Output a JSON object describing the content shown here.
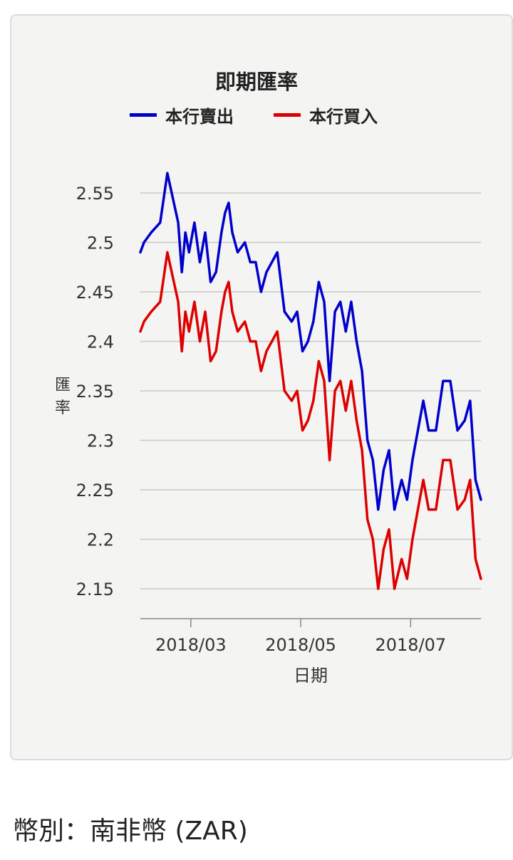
{
  "chart_data": {
    "type": "line",
    "title": "即期匯率",
    "xlabel": "日期",
    "ylabel": "匯率",
    "ylim": [
      2.12,
      2.58
    ],
    "x_ticks": [
      "2018/03",
      "2018/05",
      "2018/07"
    ],
    "y_ticks": [
      2.15,
      2.2,
      2.25,
      2.3,
      2.35,
      2.4,
      2.45,
      2.5,
      2.55
    ],
    "legend_position": "top-center",
    "grid": true,
    "series": [
      {
        "name": "本行賣出",
        "color": "#0000cc",
        "x": [
          "2018-02-01",
          "2018-02-03",
          "2018-02-07",
          "2018-02-12",
          "2018-02-16",
          "2018-02-22",
          "2018-02-24",
          "2018-02-26",
          "2018-02-28",
          "2018-03-03",
          "2018-03-06",
          "2018-03-09",
          "2018-03-12",
          "2018-03-15",
          "2018-03-18",
          "2018-03-20",
          "2018-03-22",
          "2018-03-24",
          "2018-03-27",
          "2018-03-31",
          "2018-04-03",
          "2018-04-06",
          "2018-04-09",
          "2018-04-12",
          "2018-04-15",
          "2018-04-18",
          "2018-04-22",
          "2018-04-26",
          "2018-04-29",
          "2018-05-02",
          "2018-05-05",
          "2018-05-08",
          "2018-05-11",
          "2018-05-14",
          "2018-05-17",
          "2018-05-20",
          "2018-05-23",
          "2018-05-26",
          "2018-05-29",
          "2018-06-01",
          "2018-06-04",
          "2018-06-07",
          "2018-06-10",
          "2018-06-13",
          "2018-06-16",
          "2018-06-19",
          "2018-06-22",
          "2018-06-26",
          "2018-06-29",
          "2018-07-02",
          "2018-07-05",
          "2018-07-08",
          "2018-07-11",
          "2018-07-15",
          "2018-07-19",
          "2018-07-23",
          "2018-07-27",
          "2018-07-31",
          "2018-08-03",
          "2018-08-06",
          "2018-08-09"
        ],
        "values": [
          2.49,
          2.5,
          2.51,
          2.52,
          2.57,
          2.52,
          2.47,
          2.51,
          2.49,
          2.52,
          2.48,
          2.51,
          2.46,
          2.47,
          2.51,
          2.53,
          2.54,
          2.51,
          2.49,
          2.5,
          2.48,
          2.48,
          2.45,
          2.47,
          2.48,
          2.49,
          2.43,
          2.42,
          2.43,
          2.39,
          2.4,
          2.42,
          2.46,
          2.44,
          2.36,
          2.43,
          2.44,
          2.41,
          2.44,
          2.4,
          2.37,
          2.3,
          2.28,
          2.23,
          2.27,
          2.29,
          2.23,
          2.26,
          2.24,
          2.28,
          2.31,
          2.34,
          2.31,
          2.31,
          2.36,
          2.36,
          2.31,
          2.32,
          2.34,
          2.26,
          2.24
        ]
      },
      {
        "name": "本行買入",
        "color": "#dd0000",
        "x": [
          "2018-02-01",
          "2018-02-03",
          "2018-02-07",
          "2018-02-12",
          "2018-02-16",
          "2018-02-22",
          "2018-02-24",
          "2018-02-26",
          "2018-02-28",
          "2018-03-03",
          "2018-03-06",
          "2018-03-09",
          "2018-03-12",
          "2018-03-15",
          "2018-03-18",
          "2018-03-20",
          "2018-03-22",
          "2018-03-24",
          "2018-03-27",
          "2018-03-31",
          "2018-04-03",
          "2018-04-06",
          "2018-04-09",
          "2018-04-12",
          "2018-04-15",
          "2018-04-18",
          "2018-04-22",
          "2018-04-26",
          "2018-04-29",
          "2018-05-02",
          "2018-05-05",
          "2018-05-08",
          "2018-05-11",
          "2018-05-14",
          "2018-05-17",
          "2018-05-20",
          "2018-05-23",
          "2018-05-26",
          "2018-05-29",
          "2018-06-01",
          "2018-06-04",
          "2018-06-07",
          "2018-06-10",
          "2018-06-13",
          "2018-06-16",
          "2018-06-19",
          "2018-06-22",
          "2018-06-26",
          "2018-06-29",
          "2018-07-02",
          "2018-07-05",
          "2018-07-08",
          "2018-07-11",
          "2018-07-15",
          "2018-07-19",
          "2018-07-23",
          "2018-07-27",
          "2018-07-31",
          "2018-08-03",
          "2018-08-06",
          "2018-08-09"
        ],
        "values": [
          2.41,
          2.42,
          2.43,
          2.44,
          2.49,
          2.44,
          2.39,
          2.43,
          2.41,
          2.44,
          2.4,
          2.43,
          2.38,
          2.39,
          2.43,
          2.45,
          2.46,
          2.43,
          2.41,
          2.42,
          2.4,
          2.4,
          2.37,
          2.39,
          2.4,
          2.41,
          2.35,
          2.34,
          2.35,
          2.31,
          2.32,
          2.34,
          2.38,
          2.36,
          2.28,
          2.35,
          2.36,
          2.33,
          2.36,
          2.32,
          2.29,
          2.22,
          2.2,
          2.15,
          2.19,
          2.21,
          2.15,
          2.18,
          2.16,
          2.2,
          2.23,
          2.26,
          2.23,
          2.23,
          2.28,
          2.28,
          2.23,
          2.24,
          2.26,
          2.18,
          2.16
        ]
      }
    ]
  },
  "footer": {
    "currency_label": "幣別：南非幣 (ZAR)"
  }
}
